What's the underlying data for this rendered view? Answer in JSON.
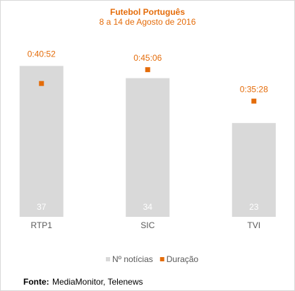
{
  "chart_data": {
    "type": "bar",
    "title": "Futebol Português",
    "subtitle": "8 a 14 de Agosto de 2016",
    "categories": [
      "RTP1",
      "SIC",
      "TVI"
    ],
    "series": [
      {
        "name": "Nº notícias",
        "color": "#d9d9d9",
        "values": [
          37,
          34,
          23
        ]
      },
      {
        "name": "Duração",
        "color": "#e46c0a",
        "type": "scatter",
        "axis": "y2",
        "values": [
          2452,
          2706,
          2128
        ],
        "value_labels": [
          "0:40:52",
          "0:45:06",
          "0:35:28"
        ]
      }
    ],
    "ylim": [
      0,
      40
    ],
    "y2lim": [
      0,
      3000
    ],
    "source_label": "Fonte:",
    "source": "MediaMonitor, Telenews"
  }
}
